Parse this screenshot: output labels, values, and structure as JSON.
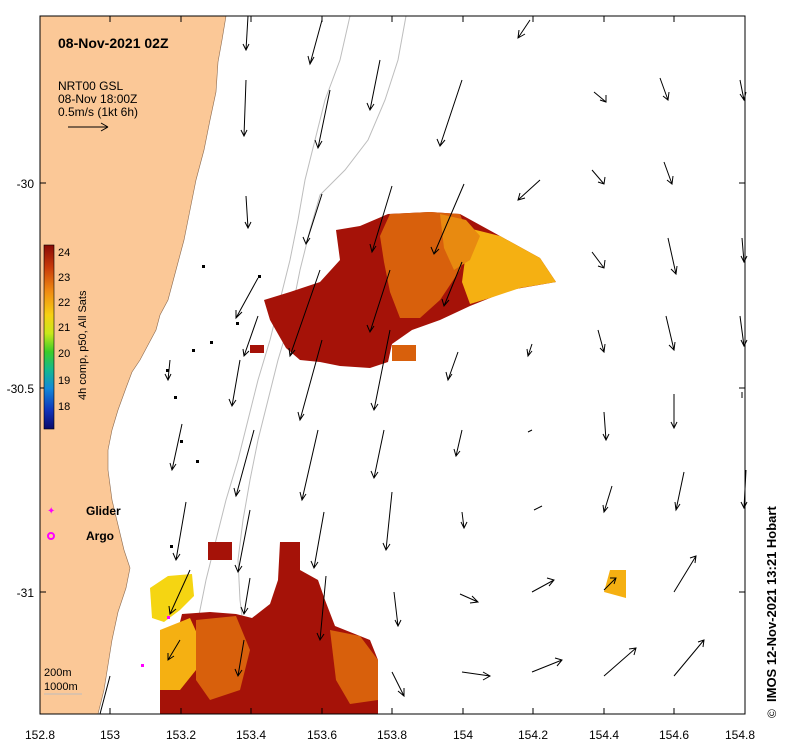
{
  "map": {
    "title": "08-Nov-2021 02Z",
    "product": {
      "line1": "NRT00 GSL",
      "line2": "08-Nov 18:00Z",
      "line3": "0.5m/s (1kt 6h)"
    },
    "credit": "IMOS 12-Nov-2021 13:21 Hobart",
    "copyright_symbol": "©",
    "x_ticks": [
      "152.8",
      "153",
      "153.2",
      "153.4",
      "153.6",
      "153.8",
      "154",
      "154.2",
      "154.4",
      "154.6",
      "154.8"
    ],
    "y_ticks": [
      "-30",
      "-30.5",
      "-31"
    ],
    "colorbar": {
      "label": "4h comp, p50, All Sats",
      "ticks": [
        "24",
        "23",
        "22",
        "21",
        "20",
        "19",
        "18"
      ]
    },
    "legend": {
      "glider": "Glider",
      "argo": "Argo"
    },
    "isobaths": {
      "shallow": "200m",
      "deep": "1000m"
    },
    "colors": {
      "land": "#fbc897",
      "sst_warm": "#a51208",
      "sst_mid": "#d8600c",
      "sst_cool": "#f5b012",
      "marker": "#ff00ff"
    }
  }
}
